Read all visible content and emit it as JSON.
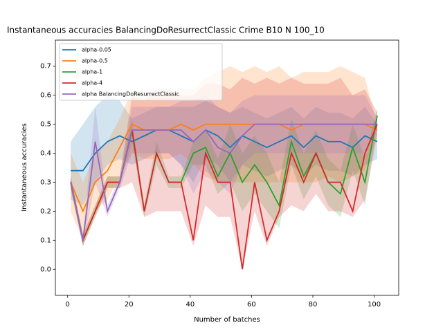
{
  "chart_data": {
    "type": "line",
    "title": "Instantaneous accuracies BalancingDoResurrectClassic Crime B10 N 100_10",
    "xlabel": "Number of batches",
    "ylabel": "Instantaneous accuracies",
    "x": [
      1,
      5,
      9,
      13,
      17,
      21,
      25,
      29,
      33,
      37,
      41,
      45,
      49,
      53,
      57,
      61,
      65,
      69,
      73,
      77,
      81,
      85,
      89,
      93,
      97,
      101
    ],
    "xlim": [
      -4,
      108
    ],
    "xticks": [
      0,
      20,
      40,
      60,
      80,
      100
    ],
    "ylim": [
      -0.09,
      0.79
    ],
    "yticks": [
      {
        "value": 0,
        "label": "0.0"
      },
      0.1,
      0.2,
      0.3,
      0.4,
      0.5,
      0.6,
      0.7
    ],
    "legend": "upper left",
    "series": [
      {
        "name": "alpha-0.05",
        "color": "#1f77b4",
        "values": [
          0.34,
          0.34,
          0.4,
          0.44,
          0.46,
          0.44,
          0.46,
          0.48,
          0.48,
          0.46,
          0.44,
          0.48,
          0.46,
          0.42,
          0.46,
          0.44,
          0.42,
          0.44,
          0.46,
          0.42,
          0.46,
          0.44,
          0.44,
          0.42,
          0.46,
          0.44
        ],
        "lower": [
          0.24,
          0.22,
          0.3,
          0.36,
          0.38,
          0.36,
          0.38,
          0.4,
          0.4,
          0.36,
          0.3,
          0.38,
          0.36,
          0.3,
          0.36,
          0.34,
          0.32,
          0.34,
          0.36,
          0.32,
          0.36,
          0.34,
          0.34,
          0.32,
          0.36,
          0.38
        ],
        "upper": [
          0.44,
          0.5,
          0.56,
          0.6,
          0.58,
          0.52,
          0.54,
          0.56,
          0.56,
          0.56,
          0.56,
          0.58,
          0.56,
          0.54,
          0.56,
          0.54,
          0.52,
          0.54,
          0.56,
          0.52,
          0.56,
          0.54,
          0.54,
          0.52,
          0.56,
          0.5
        ]
      },
      {
        "name": "alpha-0.5",
        "color": "#ff7f0e",
        "values": [
          0.3,
          0.2,
          0.3,
          0.34,
          0.42,
          0.5,
          0.48,
          0.48,
          0.48,
          0.5,
          0.48,
          0.5,
          0.5,
          0.5,
          0.5,
          0.5,
          0.5,
          0.5,
          0.48,
          0.5,
          0.5,
          0.5,
          0.5,
          0.5,
          0.5,
          0.48
        ],
        "lower": [
          0.2,
          0.1,
          0.2,
          0.24,
          0.32,
          0.4,
          0.38,
          0.38,
          0.38,
          0.4,
          0.36,
          0.32,
          0.3,
          0.3,
          0.3,
          0.3,
          0.3,
          0.3,
          0.3,
          0.3,
          0.3,
          0.32,
          0.3,
          0.32,
          0.34,
          0.46
        ],
        "upper": [
          0.4,
          0.3,
          0.4,
          0.44,
          0.52,
          0.62,
          0.6,
          0.6,
          0.6,
          0.62,
          0.62,
          0.66,
          0.68,
          0.7,
          0.68,
          0.7,
          0.68,
          0.7,
          0.66,
          0.68,
          0.68,
          0.68,
          0.7,
          0.68,
          0.66,
          0.5
        ]
      },
      {
        "name": "alpha-1",
        "color": "#2ca02c",
        "values": [
          0.3,
          0.1,
          0.2,
          0.3,
          0.3,
          0.48,
          0.2,
          0.4,
          0.3,
          0.3,
          0.4,
          0.42,
          0.32,
          0.4,
          0.3,
          0.36,
          0.3,
          0.22,
          0.44,
          0.32,
          0.4,
          0.3,
          0.26,
          0.42,
          0.3,
          0.53
        ],
        "lower": [
          0.28,
          0.08,
          0.18,
          0.28,
          0.28,
          0.44,
          0.18,
          0.36,
          0.28,
          0.28,
          0.36,
          0.36,
          0.26,
          0.3,
          0.2,
          0.26,
          0.2,
          0.14,
          0.36,
          0.24,
          0.32,
          0.22,
          0.18,
          0.34,
          0.22,
          0.5
        ],
        "upper": [
          0.32,
          0.12,
          0.22,
          0.32,
          0.32,
          0.52,
          0.22,
          0.44,
          0.32,
          0.32,
          0.44,
          0.48,
          0.38,
          0.5,
          0.4,
          0.46,
          0.4,
          0.3,
          0.52,
          0.4,
          0.48,
          0.38,
          0.34,
          0.5,
          0.38,
          0.56
        ]
      },
      {
        "name": "alpha-4",
        "color": "#d62728",
        "values": [
          0.3,
          0.1,
          0.2,
          0.3,
          0.3,
          0.48,
          0.2,
          0.4,
          0.3,
          0.3,
          0.1,
          0.4,
          0.3,
          0.3,
          0.0,
          0.3,
          0.1,
          0.2,
          0.4,
          0.3,
          0.4,
          0.3,
          0.3,
          0.2,
          0.4,
          0.5
        ],
        "lower": [
          0.28,
          0.08,
          0.18,
          0.28,
          0.28,
          0.3,
          0.18,
          0.2,
          0.2,
          0.2,
          0.08,
          0.22,
          0.18,
          0.18,
          0.0,
          0.2,
          0.08,
          0.18,
          0.22,
          0.2,
          0.26,
          0.2,
          0.2,
          0.18,
          0.24,
          0.46
        ],
        "upper": [
          0.32,
          0.12,
          0.22,
          0.32,
          0.32,
          0.6,
          0.58,
          0.62,
          0.62,
          0.6,
          0.6,
          0.64,
          0.64,
          0.62,
          0.66,
          0.64,
          0.66,
          0.64,
          0.66,
          0.64,
          0.64,
          0.64,
          0.66,
          0.6,
          0.62,
          0.54
        ]
      },
      {
        "name": "alpha BalancingDoResurrectClassic",
        "color": "#9467bd",
        "values": [
          0.3,
          0.1,
          0.44,
          0.2,
          0.3,
          0.48,
          0.48,
          0.48,
          0.48,
          0.48,
          0.44,
          0.48,
          0.42,
          0.4,
          0.46,
          0.5,
          0.5,
          0.5,
          0.5,
          0.5,
          0.5,
          0.5,
          0.5,
          0.5,
          0.5,
          0.5
        ],
        "lower": [
          0.28,
          0.08,
          0.3,
          0.18,
          0.28,
          0.4,
          0.4,
          0.4,
          0.4,
          0.36,
          0.26,
          0.34,
          0.3,
          0.26,
          0.36,
          0.4,
          0.4,
          0.4,
          0.4,
          0.4,
          0.4,
          0.4,
          0.4,
          0.4,
          0.4,
          0.48
        ],
        "upper": [
          0.32,
          0.12,
          0.56,
          0.22,
          0.32,
          0.56,
          0.56,
          0.56,
          0.56,
          0.58,
          0.58,
          0.6,
          0.56,
          0.54,
          0.58,
          0.6,
          0.6,
          0.6,
          0.6,
          0.6,
          0.6,
          0.6,
          0.6,
          0.6,
          0.6,
          0.52
        ]
      }
    ]
  }
}
